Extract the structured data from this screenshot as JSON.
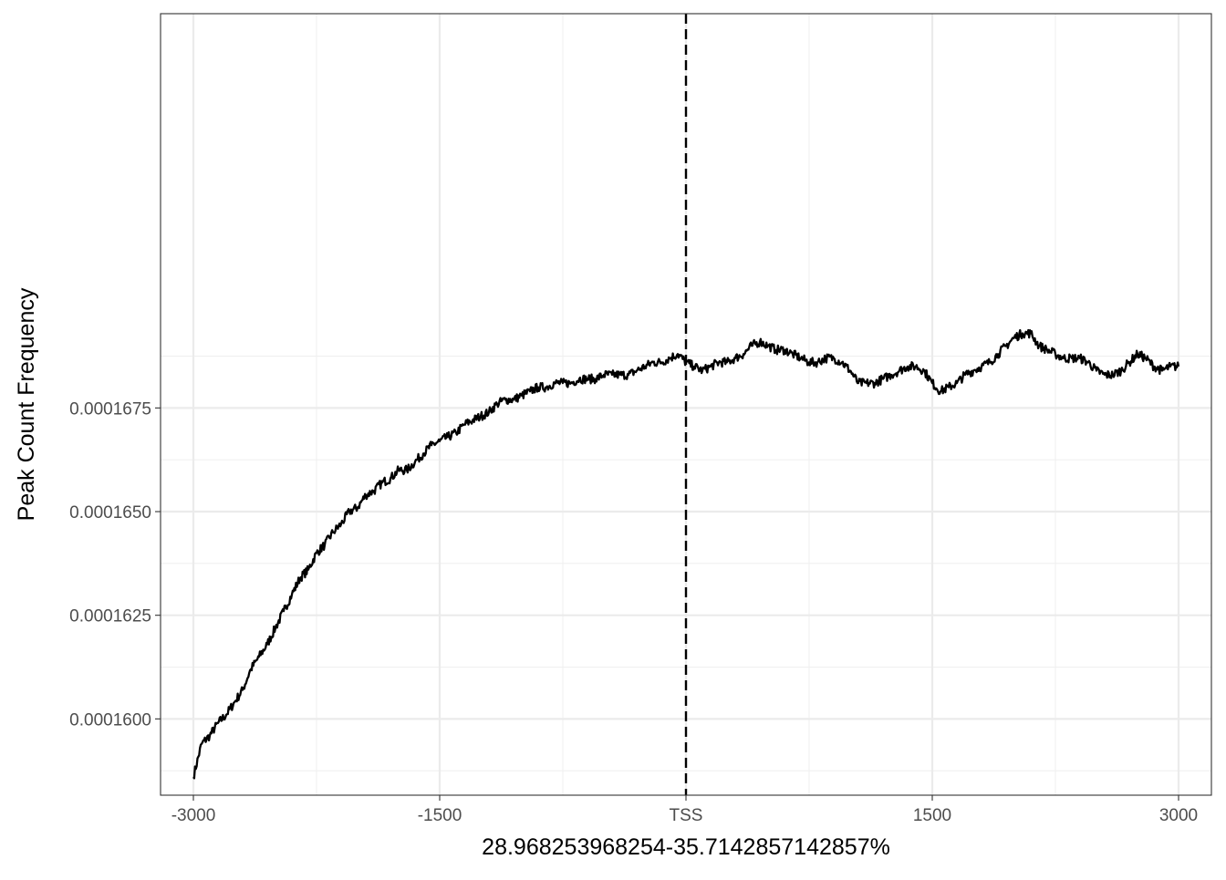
{
  "chart_data": {
    "type": "line",
    "title": "",
    "xlabel": "28.968253968254-35.7142857142857%",
    "ylabel": "Peak Count Frequency",
    "xlim": [
      -3200,
      3200
    ],
    "ylim": [
      0.00015816,
      0.00017701
    ],
    "x_ticks": [
      -3000,
      -1500,
      0,
      1500,
      3000
    ],
    "x_tick_labels": [
      "-3000",
      "-1500",
      "TSS",
      "1500",
      "3000"
    ],
    "y_ticks": [
      0.00016,
      0.0001625,
      0.000165,
      0.0001675
    ],
    "y_tick_labels": [
      "0.0001600",
      "0.0001625",
      "0.0001650",
      "0.0001675"
    ],
    "grid": true,
    "reference_line": {
      "x": 0,
      "style": "dashed",
      "color": "#000000"
    },
    "series": [
      {
        "color": "#000000",
        "x": [
          -3000,
          -2950,
          -2900,
          -2850,
          -2800,
          -2750,
          -2700,
          -2650,
          -2600,
          -2550,
          -2500,
          -2450,
          -2400,
          -2350,
          -2300,
          -2250,
          -2200,
          -2150,
          -2100,
          -2050,
          -2000,
          -1950,
          -1900,
          -1850,
          -1800,
          -1750,
          -1700,
          -1650,
          -1600,
          -1550,
          -1500,
          -1450,
          -1400,
          -1350,
          -1300,
          -1250,
          -1200,
          -1150,
          -1100,
          -1050,
          -1000,
          -950,
          -900,
          -850,
          -800,
          -750,
          -700,
          -650,
          -600,
          -550,
          -500,
          -450,
          -400,
          -350,
          -300,
          -250,
          -200,
          -150,
          -100,
          -50,
          0,
          50,
          100,
          150,
          200,
          250,
          300,
          350,
          400,
          450,
          500,
          550,
          600,
          650,
          700,
          750,
          800,
          850,
          900,
          950,
          1000,
          1050,
          1100,
          1150,
          1200,
          1250,
          1300,
          1350,
          1400,
          1450,
          1500,
          1550,
          1600,
          1650,
          1700,
          1750,
          1800,
          1850,
          1900,
          1950,
          2000,
          2050,
          2100,
          2150,
          2200,
          2250,
          2300,
          2350,
          2400,
          2450,
          2500,
          2550,
          2600,
          2650,
          2700,
          2750,
          2800,
          2850,
          2900,
          2950,
          3000
        ],
        "values": [
          0.0001586,
          0.0001594,
          0.0001596,
          0.0001599,
          0.0001601,
          0.0001604,
          0.0001607,
          0.0001612,
          0.0001615,
          0.0001618,
          0.0001622,
          0.0001626,
          0.000163,
          0.0001634,
          0.0001636,
          0.000164,
          0.0001642,
          0.0001645,
          0.0001647,
          0.000165,
          0.0001651,
          0.0001654,
          0.0001655,
          0.0001657,
          0.0001658,
          0.000166,
          0.000166,
          0.0001662,
          0.0001664,
          0.0001666,
          0.0001667,
          0.0001668,
          0.0001669,
          0.0001671,
          0.0001672,
          0.0001673,
          0.0001674,
          0.0001676,
          0.0001677,
          0.0001677,
          0.0001678,
          0.0001679,
          0.000168,
          0.000168,
          0.0001681,
          0.0001681,
          0.0001681,
          0.0001682,
          0.0001682,
          0.0001682,
          0.0001683,
          0.0001683,
          0.0001683,
          0.0001683,
          0.0001684,
          0.0001685,
          0.0001686,
          0.0001686,
          0.0001687,
          0.0001688,
          0.0001686,
          0.0001685,
          0.0001684,
          0.0001685,
          0.0001686,
          0.0001686,
          0.0001687,
          0.0001688,
          0.000169,
          0.0001691,
          0.000169,
          0.0001689,
          0.0001689,
          0.0001688,
          0.0001687,
          0.0001686,
          0.0001686,
          0.0001687,
          0.0001687,
          0.0001686,
          0.0001684,
          0.0001681,
          0.0001681,
          0.0001681,
          0.0001682,
          0.0001683,
          0.0001684,
          0.0001685,
          0.0001685,
          0.0001684,
          0.0001681,
          0.0001679,
          0.000168,
          0.0001681,
          0.0001683,
          0.0001684,
          0.0001685,
          0.0001686,
          0.0001688,
          0.000169,
          0.0001692,
          0.0001693,
          0.0001693,
          0.000169,
          0.0001689,
          0.0001688,
          0.0001687,
          0.0001687,
          0.0001687,
          0.0001686,
          0.0001684,
          0.0001683,
          0.0001683,
          0.0001684,
          0.0001686,
          0.0001688,
          0.0001687,
          0.0001685,
          0.0001684,
          0.0001685,
          0.0001685
        ]
      }
    ]
  }
}
